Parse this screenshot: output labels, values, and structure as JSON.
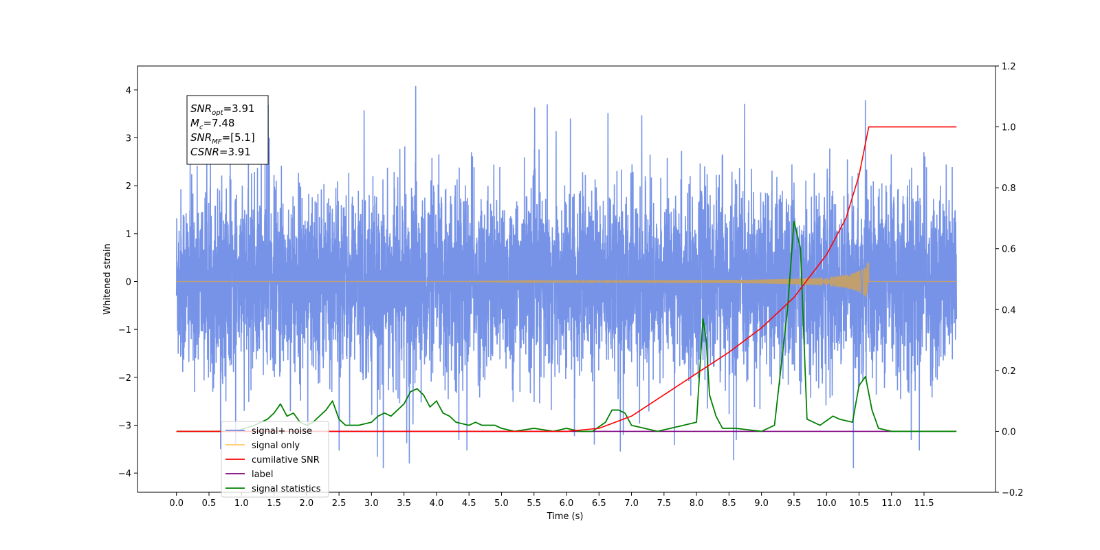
{
  "chart_data": {
    "type": "line",
    "xlabel": "Time (s)",
    "ylabel": "Whitened strain",
    "xlim": [
      -0.6,
      12.6
    ],
    "ylim": [
      -4.4,
      4.5
    ],
    "y2lim": [
      -0.2,
      1.2
    ],
    "x_ticks": [
      "0.0",
      "0.5",
      "1.0",
      "1.5",
      "2.0",
      "2.5",
      "3.0",
      "3.5",
      "4.0",
      "4.5",
      "5.0",
      "5.5",
      "6.0",
      "6.5",
      "7.0",
      "7.5",
      "8.0",
      "8.5",
      "9.0",
      "9.5",
      "10.0",
      "10.5",
      "11.0",
      "11.5"
    ],
    "y_ticks": [
      "4",
      "3",
      "2",
      "1",
      "0",
      "−1",
      "−2",
      "−3",
      "−4"
    ],
    "y2_ticks": [
      "1.2",
      "1.0",
      "0.8",
      "0.6",
      "0.4",
      "0.2",
      "0.0",
      "−0.2"
    ],
    "annotation": {
      "lines": [
        {
          "base": "SNR",
          "sub": "opt",
          "value": "=3.91"
        },
        {
          "base": "M",
          "sub": "c",
          "value": "=7.48"
        },
        {
          "base": "SNR",
          "sub": "MF",
          "value": "=[5.1]"
        },
        {
          "base": "CSNR",
          "sub": "",
          "value": "=3.91"
        }
      ]
    },
    "legend": {
      "placement": "lower-left",
      "items": [
        {
          "label": "signal+ noise",
          "color": "#6f8de6"
        },
        {
          "label": "signal only",
          "color": "#ffc966"
        },
        {
          "label": "cumilative SNR",
          "color": "#ff0000"
        },
        {
          "label": "label",
          "color": "#800080"
        },
        {
          "label": "signal statistics",
          "color": "#008000"
        }
      ]
    },
    "series": [
      {
        "name": "signal+ noise",
        "axis": "left",
        "color": "#6f8de6",
        "description_x_range": [
          0,
          12.0
        ],
        "approx_amplitude": 1.7,
        "peaks": [
          4.1,
          -3.9
        ]
      },
      {
        "name": "signal only",
        "axis": "left",
        "color": "#c2a06e",
        "x_range": [
          0,
          10.65
        ],
        "peak_amplitude": 0.42
      },
      {
        "name": "cumilative SNR",
        "axis": "right",
        "color": "#ff0000",
        "x": [
          0,
          6.0,
          6.5,
          7.0,
          7.5,
          8.0,
          8.5,
          9.0,
          9.5,
          10.0,
          10.3,
          10.5,
          10.65,
          12.0
        ],
        "y": [
          0.0,
          0.0,
          0.01,
          0.05,
          0.12,
          0.19,
          0.26,
          0.34,
          0.44,
          0.58,
          0.7,
          0.84,
          1.0,
          1.0
        ]
      },
      {
        "name": "label",
        "axis": "right",
        "color": "#800080",
        "x": [
          0,
          11.0
        ],
        "y": [
          0.0,
          0.0
        ]
      },
      {
        "name": "signal statistics",
        "axis": "right",
        "color": "#008000",
        "x": [
          0.0,
          0.9,
          1.2,
          1.4,
          1.5,
          1.6,
          1.7,
          1.8,
          1.9,
          2.0,
          2.1,
          2.3,
          2.4,
          2.5,
          2.6,
          2.8,
          3.0,
          3.1,
          3.2,
          3.3,
          3.4,
          3.5,
          3.6,
          3.7,
          3.8,
          3.9,
          4.0,
          4.1,
          4.2,
          4.3,
          4.5,
          4.6,
          4.7,
          4.9,
          5.0,
          5.2,
          5.5,
          5.8,
          6.0,
          6.2,
          6.4,
          6.6,
          6.7,
          6.8,
          6.9,
          7.0,
          7.2,
          7.4,
          7.6,
          7.8,
          8.0,
          8.1,
          8.15,
          8.2,
          8.3,
          8.4,
          8.6,
          9.0,
          9.2,
          9.4,
          9.5,
          9.6,
          9.7,
          9.9,
          10.1,
          10.2,
          10.4,
          10.5,
          10.6,
          10.7,
          10.8,
          11.0,
          12.0
        ],
        "y": [
          0.0,
          0.0,
          0.02,
          0.04,
          0.06,
          0.09,
          0.05,
          0.06,
          0.03,
          0.02,
          0.03,
          0.07,
          0.1,
          0.04,
          0.02,
          0.02,
          0.03,
          0.05,
          0.06,
          0.05,
          0.07,
          0.09,
          0.13,
          0.14,
          0.12,
          0.08,
          0.1,
          0.06,
          0.05,
          0.03,
          0.02,
          0.03,
          0.02,
          0.02,
          0.01,
          0.0,
          0.01,
          0.0,
          0.01,
          0.0,
          0.0,
          0.03,
          0.07,
          0.07,
          0.06,
          0.02,
          0.01,
          0.0,
          0.01,
          0.02,
          0.03,
          0.37,
          0.3,
          0.12,
          0.05,
          0.01,
          0.01,
          0.0,
          0.02,
          0.4,
          0.69,
          0.6,
          0.04,
          0.02,
          0.05,
          0.04,
          0.03,
          0.15,
          0.18,
          0.07,
          0.01,
          0.0,
          0.0
        ]
      }
    ],
    "colors": {
      "noise": "#6f8de6",
      "signal": "#c2a06e",
      "csnr": "#ff0000",
      "label": "#800080",
      "stats": "#008000"
    }
  }
}
